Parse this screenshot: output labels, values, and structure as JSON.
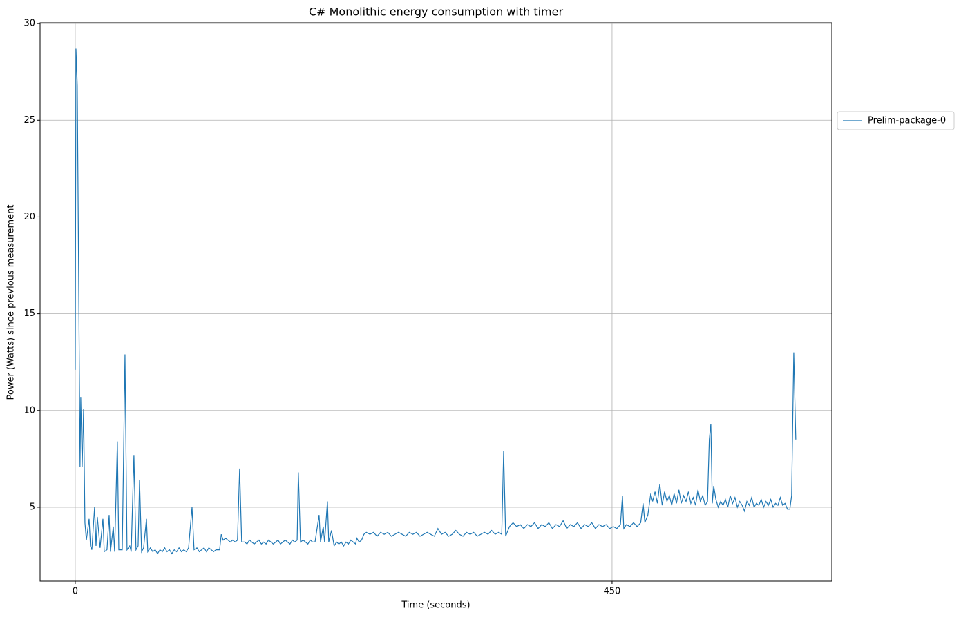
{
  "chart_data": {
    "type": "line",
    "title": "C# Monolithic energy consumption with timer",
    "xlabel": "Time (seconds)",
    "ylabel": "Power (Watts) since previous measurement",
    "x": [
      0,
      0.6,
      1.7,
      4,
      4.6,
      5.8,
      7,
      8.1,
      9.3,
      11.6,
      12.7,
      13.9,
      16.2,
      17.4,
      18.5,
      20.8,
      23.2,
      24.3,
      26.6,
      28.4,
      29.5,
      31.9,
      33,
      35.3,
      36.5,
      39.4,
      41.7,
      43.4,
      45.7,
      46.9,
      49.2,
      50.9,
      52.7,
      53.9,
      55.6,
      57.3,
      59.7,
      60.8,
      63,
      65,
      67,
      69,
      71,
      73,
      75,
      77,
      79,
      81,
      83,
      85,
      87,
      89,
      91,
      93,
      95,
      97.9,
      99.6,
      102,
      104,
      106,
      108,
      110,
      112,
      114,
      116,
      118,
      121,
      122.4,
      124,
      126,
      128,
      130,
      132,
      134,
      136,
      137.8,
      139.5,
      142,
      144,
      146,
      148,
      150,
      152,
      154,
      156,
      158,
      160,
      162,
      164,
      166,
      168,
      170,
      172,
      174,
      176,
      178,
      180,
      182,
      184,
      186,
      187,
      188.8,
      191,
      193,
      195,
      197,
      199,
      201,
      204.4,
      205.6,
      207.9,
      209,
      211.4,
      212.5,
      214.8,
      217,
      219,
      221,
      223,
      225,
      227,
      229,
      231,
      233,
      235,
      236,
      238,
      240,
      242,
      244,
      247,
      250,
      253,
      256,
      259,
      262,
      265,
      268,
      271,
      274,
      277,
      280,
      283,
      286,
      289,
      292,
      295,
      298,
      301,
      304,
      307,
      310,
      313,
      316,
      319,
      322,
      325,
      328,
      331,
      334,
      337,
      340,
      343,
      346,
      349,
      352,
      355,
      357.5,
      359.1,
      360.8,
      364,
      367,
      370,
      373,
      376,
      379,
      382,
      385,
      388,
      391,
      394,
      397,
      400,
      403,
      406,
      409,
      412,
      415,
      418,
      421,
      424,
      427,
      430,
      433,
      436,
      439,
      442,
      445,
      448,
      451,
      454,
      457,
      458.7,
      459.8,
      462,
      465,
      468,
      471,
      474,
      476,
      477.5,
      480,
      482.4,
      484,
      486,
      488,
      490,
      492,
      494,
      496,
      498,
      500,
      502,
      504,
      506,
      508,
      510,
      512,
      514,
      516,
      518,
      520,
      522,
      524,
      526,
      528,
      530,
      531.5,
      532.8,
      534,
      535.2,
      537,
      539,
      541,
      543,
      545,
      547,
      549,
      551,
      553,
      555,
      557,
      559,
      561,
      563,
      565,
      567,
      569,
      571,
      573,
      575,
      577,
      579,
      581,
      583,
      585,
      587,
      589,
      591,
      593,
      595,
      597,
      599,
      600.5,
      602.3,
      604
    ],
    "series": [
      {
        "name": "Prelim-package-0",
        "color": "#1f77b4",
        "values": [
          12.1,
          28.7,
          26.8,
          7.1,
          10.7,
          7.1,
          10.1,
          4.2,
          3.3,
          4.4,
          3.0,
          2.8,
          5.0,
          3.0,
          4.5,
          2.9,
          4.4,
          2.7,
          2.8,
          4.6,
          2.7,
          4.0,
          2.7,
          8.4,
          2.8,
          2.8,
          12.9,
          2.8,
          3.0,
          2.7,
          7.7,
          2.8,
          3.0,
          6.4,
          2.7,
          2.9,
          4.4,
          2.7,
          2.9,
          2.7,
          2.8,
          2.6,
          2.8,
          2.7,
          2.9,
          2.7,
          2.8,
          2.6,
          2.8,
          2.7,
          2.9,
          2.7,
          2.8,
          2.7,
          2.9,
          5.0,
          2.8,
          2.9,
          2.7,
          2.8,
          2.9,
          2.7,
          2.9,
          2.8,
          2.7,
          2.8,
          2.8,
          3.6,
          3.3,
          3.4,
          3.3,
          3.2,
          3.3,
          3.2,
          3.3,
          7.0,
          3.2,
          3.2,
          3.1,
          3.3,
          3.2,
          3.1,
          3.2,
          3.3,
          3.1,
          3.2,
          3.1,
          3.3,
          3.2,
          3.1,
          3.2,
          3.3,
          3.1,
          3.2,
          3.3,
          3.2,
          3.1,
          3.3,
          3.2,
          3.3,
          6.8,
          3.2,
          3.3,
          3.2,
          3.1,
          3.3,
          3.2,
          3.2,
          4.6,
          3.2,
          4.0,
          3.2,
          5.3,
          3.2,
          3.8,
          3.0,
          3.2,
          3.1,
          3.2,
          3.0,
          3.2,
          3.1,
          3.3,
          3.2,
          3.1,
          3.4,
          3.2,
          3.3,
          3.6,
          3.7,
          3.6,
          3.7,
          3.5,
          3.7,
          3.6,
          3.7,
          3.5,
          3.6,
          3.7,
          3.6,
          3.5,
          3.7,
          3.6,
          3.7,
          3.5,
          3.6,
          3.7,
          3.6,
          3.5,
          3.9,
          3.6,
          3.7,
          3.5,
          3.6,
          3.8,
          3.6,
          3.5,
          3.7,
          3.6,
          3.7,
          3.5,
          3.6,
          3.7,
          3.6,
          3.8,
          3.6,
          3.7,
          3.6,
          7.9,
          3.5,
          4.0,
          4.2,
          4.0,
          4.1,
          3.9,
          4.1,
          4.0,
          4.2,
          3.9,
          4.1,
          4.0,
          4.2,
          3.9,
          4.1,
          4.0,
          4.3,
          3.9,
          4.1,
          4.0,
          4.2,
          3.9,
          4.1,
          4.0,
          4.2,
          3.9,
          4.1,
          4.0,
          4.1,
          3.9,
          4.0,
          3.9,
          4.1,
          5.6,
          3.9,
          4.1,
          4.0,
          4.2,
          4.0,
          4.2,
          5.2,
          4.2,
          4.6,
          5.7,
          5.3,
          5.8,
          5.2,
          6.2,
          5.1,
          5.8,
          5.3,
          5.6,
          5.1,
          5.7,
          5.2,
          5.9,
          5.2,
          5.6,
          5.3,
          5.8,
          5.2,
          5.5,
          5.1,
          5.9,
          5.3,
          5.6,
          5.1,
          5.3,
          8.5,
          9.3,
          5.2,
          6.1,
          5.4,
          5.0,
          5.3,
          5.1,
          5.4,
          5.0,
          5.6,
          5.2,
          5.5,
          5.0,
          5.3,
          5.1,
          4.8,
          5.3,
          5.1,
          5.5,
          5.0,
          5.2,
          5.1,
          5.4,
          5.0,
          5.3,
          5.1,
          5.4,
          5.0,
          5.2,
          5.1,
          5.5,
          5.1,
          5.2,
          4.9,
          4.9,
          5.6,
          13.0,
          8.5
        ]
      }
    ],
    "xlim": [
      -29.5,
      634.2
    ],
    "ylim": [
      1.18,
      30.04
    ],
    "xticks": [
      0,
      450
    ],
    "yticks": [
      5,
      10,
      15,
      20,
      25,
      30
    ],
    "grid": true,
    "legend": "outside right"
  }
}
